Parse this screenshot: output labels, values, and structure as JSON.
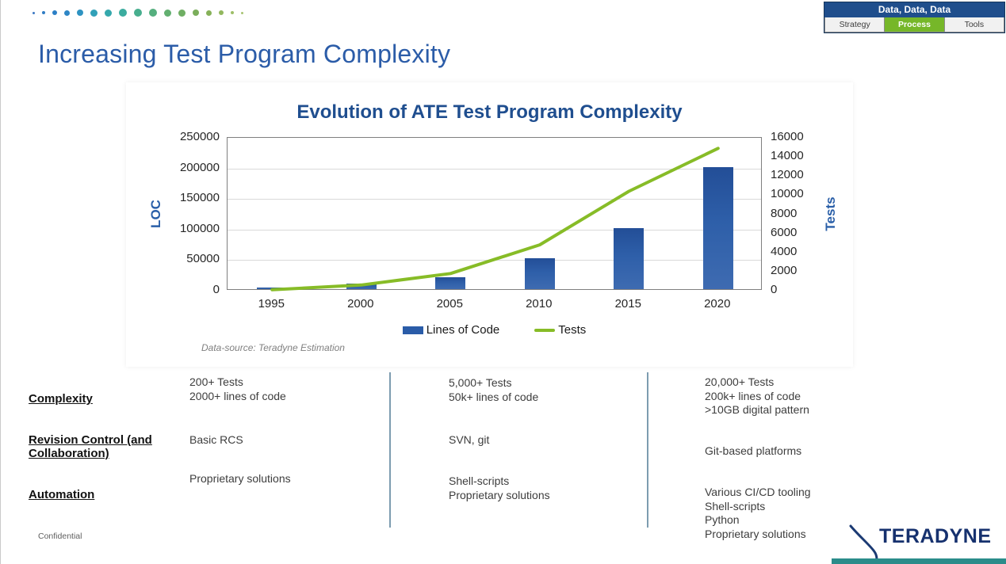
{
  "header": {
    "title": "Increasing Test Program Complexity",
    "nav_box": {
      "title": "Data, Data, Data",
      "tabs": [
        {
          "label": "Strategy",
          "active": false
        },
        {
          "label": "Process",
          "active": true
        },
        {
          "label": "Tools",
          "active": false
        }
      ]
    },
    "dots": [
      {
        "size": 3,
        "color": "#3c78c3"
      },
      {
        "size": 4,
        "color": "#2f7cc4"
      },
      {
        "size": 6,
        "color": "#2b7fc6"
      },
      {
        "size": 7,
        "color": "#2e86c5"
      },
      {
        "size": 8,
        "color": "#2e93c2"
      },
      {
        "size": 9,
        "color": "#31a0b8"
      },
      {
        "size": 9,
        "color": "#35a8ac"
      },
      {
        "size": 10,
        "color": "#3bac9f"
      },
      {
        "size": 10,
        "color": "#47ae8e"
      },
      {
        "size": 10,
        "color": "#55af7e"
      },
      {
        "size": 9,
        "color": "#62af70"
      },
      {
        "size": 9,
        "color": "#6fae63"
      },
      {
        "size": 8,
        "color": "#7bae5b"
      },
      {
        "size": 7,
        "color": "#86b158"
      },
      {
        "size": 6,
        "color": "#92b75e"
      },
      {
        "size": 4,
        "color": "#9dbe68"
      },
      {
        "size": 3,
        "color": "#a8c473"
      }
    ]
  },
  "chart": {
    "title": "Evolution of ATE Test Program Complexity",
    "left_axis_label": "LOC",
    "right_axis_label": "Tests",
    "data_source": "Data-source: Teradyne Estimation",
    "legend": [
      {
        "label": "Lines of Code",
        "type": "bar",
        "color": "#2a5ca8"
      },
      {
        "label": "Tests",
        "type": "line",
        "color": "#87bc27"
      }
    ]
  },
  "chart_data": {
    "type": "bar",
    "title": "Evolution of ATE Test Program Complexity",
    "categories": [
      "1995",
      "2000",
      "2005",
      "2010",
      "2015",
      "2020"
    ],
    "series": [
      {
        "name": "Lines of Code",
        "type": "bar",
        "axis": "left",
        "values": [
          2000,
          9000,
          20000,
          50000,
          100000,
          200000
        ]
      },
      {
        "name": "Tests",
        "type": "line",
        "axis": "right",
        "values": [
          100,
          600,
          1800,
          4800,
          10400,
          14900
        ]
      }
    ],
    "left_axis": {
      "label": "LOC",
      "min": 0,
      "max": 250000,
      "step": 50000
    },
    "right_axis": {
      "label": "Tests",
      "min": 0,
      "max": 16000,
      "step": 2000
    },
    "grid": true,
    "legend_position": "bottom",
    "annotations": [
      "Data-source: Teradyne Estimation"
    ]
  },
  "table": {
    "row_headers": [
      "Complexity",
      "Revision Control (and Collaboration)",
      "Automation"
    ],
    "eras": [
      {
        "complexity": [
          "200+ Tests",
          "2000+ lines of code"
        ],
        "revision_control": [
          "Basic RCS"
        ],
        "automation": [
          "Proprietary solutions"
        ]
      },
      {
        "complexity": [
          "5,000+ Tests",
          "50k+ lines of code"
        ],
        "revision_control": [
          "SVN, git"
        ],
        "automation": [
          "Shell-scripts",
          "Proprietary solutions"
        ]
      },
      {
        "complexity": [
          "20,000+ Tests",
          "200k+ lines of code",
          ">10GB digital pattern"
        ],
        "revision_control": [
          "Git-based platforms"
        ],
        "automation": [
          "Various CI/CD tooling",
          "Shell-scripts",
          "Python",
          "Proprietary solutions"
        ]
      }
    ]
  },
  "footer": {
    "confidential": "Confidential",
    "logo_text": "TERADYNE"
  },
  "colors": {
    "title_blue": "#2b5ca8",
    "chart_title_navy": "#1f4e8f",
    "bar_blue": "#2a5ca8",
    "line_green": "#87bc27",
    "process_green": "#76b729",
    "nav_header_navy": "#1f4e8c",
    "divider_steel": "#7d9cb0",
    "logo_navy": "#16316e",
    "accent_teal": "#2b8c8a"
  }
}
